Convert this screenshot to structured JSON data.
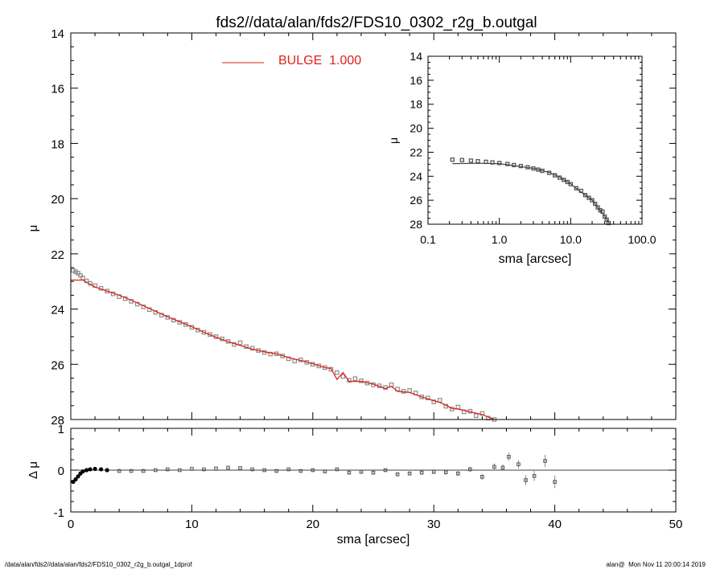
{
  "title": "fds2//data/alan/fds2/FDS10_0302_r2g_b.outgal",
  "footer_left": "/data/alan/fds2//data/alan/fds2/FDS10_0302_r2g_b.outgal_1dprof",
  "footer_right": "alan@  Mon Nov 11 20:00:14 2019",
  "colors": {
    "model": "#e0201a",
    "data": "#8c8c8c",
    "axes": "#000000"
  },
  "chart_data": [
    {
      "type": "scatter",
      "role": "main-profile",
      "title": "fds2//data/alan/fds2/FDS10_0302_r2g_b.outgal",
      "xlabel": "",
      "ylabel": "μ",
      "xlim": [
        0,
        50
      ],
      "ylim": [
        28,
        14
      ],
      "y_inverted": true,
      "yticks": [
        "14",
        "16",
        "18",
        "20",
        "22",
        "24",
        "26",
        "28"
      ],
      "legend": {
        "label": "BULGE  1.000",
        "placement": "top-center"
      },
      "series": [
        {
          "name": "data",
          "x": [
            0.2,
            0.4,
            0.6,
            0.8,
            1.0,
            1.3,
            1.6,
            2.0,
            2.5,
            3.0,
            3.5,
            4.0,
            4.5,
            5.0,
            5.5,
            6.0,
            6.5,
            7.0,
            7.5,
            8.0,
            8.5,
            9.0,
            9.5,
            10.0,
            10.5,
            11.0,
            11.5,
            12.0,
            12.5,
            13.0,
            13.5,
            14.0,
            14.5,
            15.0,
            15.5,
            16.0,
            16.5,
            17.0,
            17.5,
            18.0,
            18.5,
            19.0,
            19.5,
            20.0,
            20.5,
            21.0,
            21.5,
            22.0,
            22.5,
            23.0,
            23.5,
            24.0,
            24.5,
            25.0,
            25.5,
            26.0,
            26.5,
            27.0,
            27.5,
            28.0,
            28.5,
            29.0,
            29.5,
            30.0,
            30.5,
            31.0,
            31.5,
            32.0,
            32.5,
            33.0,
            33.5,
            34.0,
            34.5,
            35.0
          ],
          "y": [
            22.6,
            22.65,
            22.7,
            22.78,
            22.87,
            22.98,
            23.07,
            23.15,
            23.25,
            23.35,
            23.45,
            23.55,
            23.62,
            23.72,
            23.82,
            23.92,
            24.02,
            24.12,
            24.22,
            24.3,
            24.4,
            24.48,
            24.56,
            24.66,
            24.76,
            24.84,
            24.92,
            25.0,
            25.08,
            25.17,
            25.28,
            25.22,
            25.36,
            25.42,
            25.5,
            25.57,
            25.63,
            25.62,
            25.7,
            25.8,
            25.88,
            25.84,
            25.93,
            26.0,
            26.06,
            26.12,
            26.18,
            26.3,
            26.44,
            26.58,
            26.52,
            26.6,
            26.68,
            26.74,
            26.78,
            26.84,
            26.74,
            26.9,
            26.98,
            26.95,
            27.04,
            27.18,
            27.22,
            27.36,
            27.3,
            27.52,
            27.62,
            27.55,
            27.72,
            27.7,
            27.86,
            27.78,
            27.95,
            28.0
          ]
        },
        {
          "name": "model",
          "x": [
            0,
            1,
            2,
            3,
            4,
            5,
            6,
            7,
            8,
            9,
            10,
            11,
            12,
            13,
            14,
            15,
            16,
            17,
            18,
            19,
            20,
            21,
            21.5,
            22,
            22.5,
            23,
            24,
            25,
            26,
            26.5,
            27,
            28,
            29,
            30,
            30.5,
            31,
            31.5,
            32,
            33,
            34,
            35
          ],
          "y": [
            22.95,
            22.95,
            23.2,
            23.35,
            23.5,
            23.68,
            23.88,
            24.08,
            24.28,
            24.46,
            24.64,
            24.84,
            25.02,
            25.18,
            25.32,
            25.45,
            25.55,
            25.62,
            25.76,
            25.86,
            25.98,
            26.12,
            26.15,
            26.55,
            26.3,
            26.62,
            26.62,
            26.72,
            26.88,
            26.8,
            26.98,
            27.02,
            27.18,
            27.32,
            27.38,
            27.48,
            27.6,
            27.62,
            27.72,
            27.82,
            28.0
          ]
        }
      ]
    },
    {
      "type": "scatter",
      "role": "residuals",
      "xlabel": "sma [arcsec]",
      "ylabel": "Δ μ",
      "xlim": [
        0,
        50
      ],
      "ylim": [
        -1,
        1
      ],
      "xticks": [
        "0",
        "10",
        "20",
        "30",
        "40",
        "50"
      ],
      "yticks": [
        "1",
        "0",
        "-1"
      ],
      "series": [
        {
          "name": "residual",
          "x": [
            0.2,
            0.4,
            0.6,
            0.8,
            1.0,
            1.3,
            1.6,
            2.0,
            2.5,
            3.0,
            4.0,
            5.0,
            6.0,
            7.0,
            8.0,
            9.0,
            10.0,
            11.0,
            12.0,
            13.0,
            14.0,
            15.0,
            16.0,
            17.0,
            18.0,
            19.0,
            20.0,
            21.0,
            22.0,
            23.0,
            24.0,
            25.0,
            26.0,
            27.0,
            28.0,
            29.0,
            30.0,
            31.0,
            32.0,
            33.0,
            34.0,
            35.0,
            35.7,
            36.2,
            37.0,
            37.6,
            38.3,
            39.2,
            40.0
          ],
          "y": [
            -0.28,
            -0.22,
            -0.15,
            -0.08,
            -0.03,
            0.0,
            0.02,
            0.03,
            0.02,
            0.0,
            -0.02,
            -0.02,
            -0.02,
            0.0,
            0.02,
            0.0,
            0.03,
            0.02,
            0.04,
            0.06,
            0.05,
            0.02,
            0.0,
            -0.02,
            0.02,
            -0.02,
            0.0,
            -0.03,
            0.02,
            -0.06,
            -0.04,
            -0.06,
            0.0,
            -0.1,
            -0.08,
            -0.06,
            -0.04,
            -0.05,
            -0.08,
            0.02,
            -0.16,
            0.08,
            0.06,
            0.32,
            0.14,
            -0.24,
            -0.14,
            0.22,
            -0.28
          ],
          "err": [
            0.01,
            0.01,
            0.01,
            0.01,
            0.01,
            0.01,
            0.01,
            0.01,
            0.01,
            0.01,
            0.01,
            0.01,
            0.01,
            0.01,
            0.01,
            0.01,
            0.01,
            0.01,
            0.01,
            0.01,
            0.01,
            0.01,
            0.02,
            0.02,
            0.02,
            0.02,
            0.03,
            0.03,
            0.03,
            0.03,
            0.04,
            0.04,
            0.04,
            0.05,
            0.05,
            0.05,
            0.06,
            0.06,
            0.06,
            0.06,
            0.07,
            0.08,
            0.08,
            0.1,
            0.1,
            0.12,
            0.12,
            0.15,
            0.15
          ]
        }
      ]
    },
    {
      "type": "scatter",
      "role": "inset-log-profile",
      "xlabel": "sma [arcsec]",
      "ylabel": "μ",
      "xscale": "log",
      "xlim": [
        0.1,
        100
      ],
      "ylim": [
        28,
        14
      ],
      "y_inverted": true,
      "xticks": [
        "0.1",
        "1.0",
        "10.0",
        "100.0"
      ],
      "yticks": [
        "14",
        "16",
        "18",
        "20",
        "22",
        "24",
        "26",
        "28"
      ],
      "series": [
        {
          "name": "data",
          "x": [
            0.22,
            0.3,
            0.4,
            0.5,
            0.65,
            0.8,
            1.0,
            1.3,
            1.6,
            2.0,
            2.5,
            3.0,
            3.5,
            4.0,
            5.0,
            6.0,
            7.0,
            8.0,
            9.0,
            10.0,
            12.0,
            14.0,
            16.0,
            18.0,
            20.0,
            22.0,
            24.0,
            26.0,
            28.0,
            30.0,
            32.0,
            34.0
          ],
          "y": [
            22.62,
            22.65,
            22.7,
            22.75,
            22.8,
            22.85,
            22.9,
            22.98,
            23.07,
            23.15,
            23.25,
            23.35,
            23.45,
            23.55,
            23.72,
            23.92,
            24.12,
            24.3,
            24.48,
            24.66,
            25.0,
            25.22,
            25.57,
            25.8,
            26.0,
            26.3,
            26.6,
            26.84,
            26.95,
            27.36,
            27.62,
            27.9
          ]
        },
        {
          "name": "model",
          "x": [
            0.22,
            0.5,
            1.0,
            2.0,
            3.0,
            5.0,
            7.0,
            10.0,
            14.0,
            20.0,
            26.0,
            30.0,
            35.0
          ],
          "y": [
            22.95,
            22.92,
            22.95,
            23.2,
            23.35,
            23.68,
            24.08,
            24.64,
            25.32,
            25.98,
            26.88,
            27.32,
            28.0
          ]
        }
      ]
    }
  ]
}
